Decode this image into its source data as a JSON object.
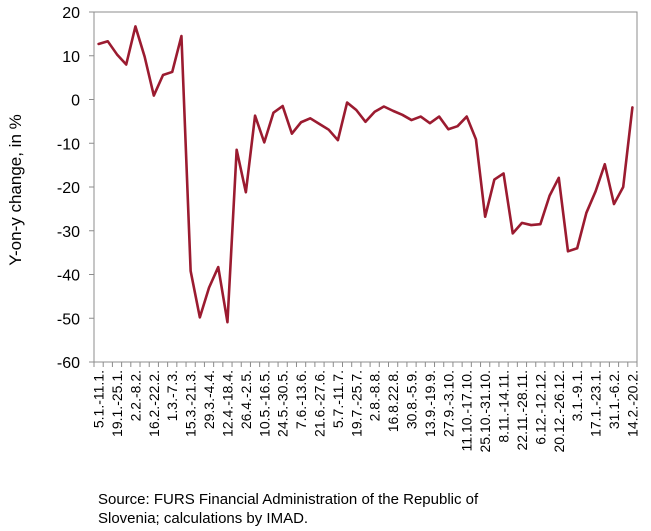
{
  "chart_data": {
    "type": "line",
    "title": "",
    "xlabel": "",
    "ylabel": "Y-on-y change, in %",
    "ylim": [
      -60,
      20
    ],
    "yticks": [
      20,
      10,
      0,
      -10,
      -20,
      -30,
      -40,
      -50,
      -60
    ],
    "grid": false,
    "legend": "none",
    "line_color": "#9b1b30",
    "categories": [
      "5.1.-11.1.",
      "",
      "19.1.-25.1.",
      "",
      "2.2.-8.2.",
      "",
      "16.2.-22.2.",
      "",
      "1.3.-7.3.",
      "",
      "15.3.-21.3.",
      "",
      "29.3.-4.4.",
      "",
      "12.4.-18.4.",
      "",
      "26.4.-2.5.",
      "",
      "10.5.-16.5.",
      "",
      "24.5.-30.5.",
      "",
      "7.6.-13.6.",
      "",
      "21.6.-27.6.",
      "",
      "5.7.-11.7.",
      "",
      "19.7.-25.7.",
      "",
      "2.8.-8.8.",
      "",
      "16.8.22.8.",
      "",
      "30.8.-5.9.",
      "",
      "13.9.-19.9.",
      "",
      "27.9.-3.10.",
      "",
      "11.10.-17.10.",
      "",
      "25.10.-31.10.",
      "",
      "8.11.-14.11.",
      "",
      "22.11.-28.11.",
      "",
      "6.12.-12.12.",
      "",
      "20.12.-26.12.",
      "",
      "3.1.-9.1.",
      "",
      "17.1.-23.1.",
      "",
      "31.1.-6.2.",
      "",
      "14.2.-20.2."
    ],
    "series": [
      {
        "values": [
          12.7,
          13.3,
          10.3,
          8.0,
          16.7,
          9.8,
          0.9,
          5.6,
          6.3,
          14.5,
          -39.2,
          -49.8,
          -43.0,
          -38.3,
          -50.9,
          -11.5,
          -21.2,
          -3.7,
          -9.8,
          -3.0,
          -1.5,
          -7.8,
          -5.2,
          -4.3,
          -5.6,
          -6.9,
          -9.3,
          -0.7,
          -2.4,
          -5.1,
          -2.8,
          -1.6,
          -2.6,
          -3.5,
          -4.7,
          -3.9,
          -5.4,
          -3.9,
          -6.8,
          -6.1,
          -3.9,
          -9.1,
          -26.8,
          -18.3,
          -16.9,
          -30.6,
          -28.2,
          -28.7,
          -28.5,
          -22.0,
          -17.9,
          -34.7,
          -34.0,
          -25.9,
          -21.0,
          -14.8,
          -23.9,
          -20.0,
          -1.8
        ]
      }
    ],
    "source_line1": "Source: FURS Financial Administration of the Republic of",
    "source_line2": "Slovenia; calculations by IMAD."
  }
}
